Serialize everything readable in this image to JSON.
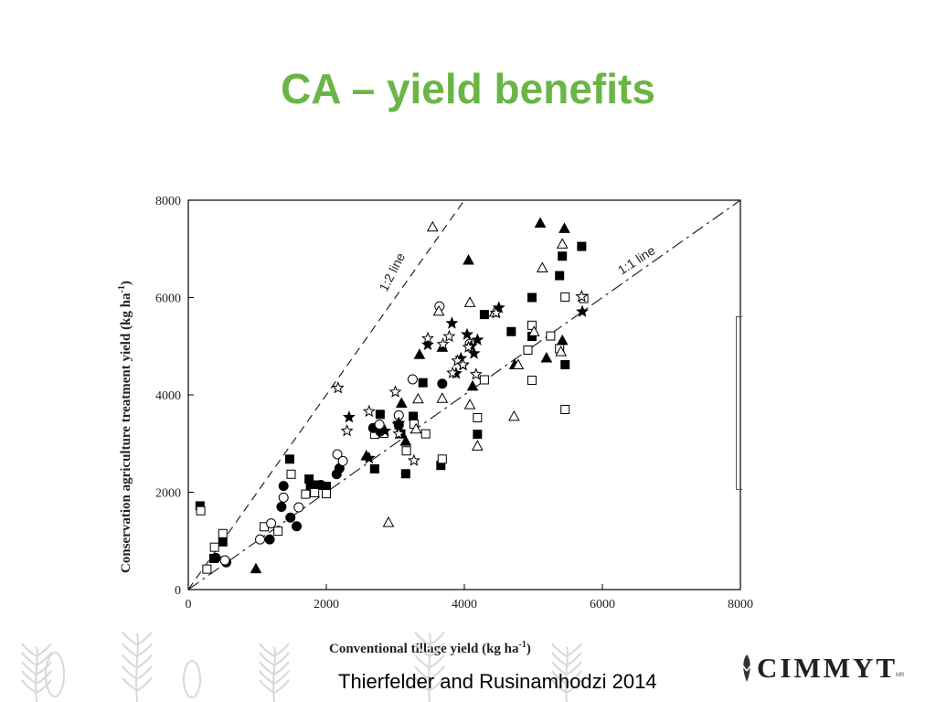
{
  "slide": {
    "title": "CA – yield benefits",
    "caption": "Thierfelder and Rusinamhodzi 2014",
    "logo": "CIMMYT",
    "logo_mark": "MR"
  },
  "colors": {
    "title": "#6ab545",
    "marker": "#000000",
    "footer_art": "#d8d8d8"
  },
  "chart_data": {
    "type": "scatter",
    "xlabel": "Conventional tillage yield (kg ha",
    "xlabel_sup": "-1",
    "xlabel_tail": ")",
    "ylabel": "Conservation agriculture treatment yield (kg ha",
    "ylabel_sup": "-1",
    "ylabel_tail": ")",
    "xlim": [
      0,
      8000
    ],
    "ylim": [
      0,
      8000
    ],
    "xticks": [
      0,
      2000,
      4000,
      6000,
      8000
    ],
    "yticks": [
      0,
      2000,
      4000,
      6000,
      8000
    ],
    "xtick_labels": [
      "0",
      "2000",
      "4000",
      "6000",
      "8000"
    ],
    "ytick_labels": [
      "0",
      "2000",
      "4000",
      "6000",
      "8000"
    ],
    "grid": false,
    "reference_lines": [
      {
        "label": "1:2 line",
        "slope": 2
      },
      {
        "label": "1:1 line",
        "slope": 1
      }
    ],
    "series": [
      {
        "marker": "filled-square",
        "points": [
          [
            170,
            1720
          ],
          [
            370,
            640
          ],
          [
            500,
            980
          ],
          [
            1470,
            2680
          ],
          [
            1750,
            2270
          ],
          [
            1820,
            2150
          ],
          [
            2000,
            2120
          ],
          [
            2700,
            2480
          ],
          [
            2780,
            3600
          ],
          [
            3080,
            3200
          ],
          [
            3150,
            2380
          ],
          [
            3260,
            3560
          ],
          [
            3400,
            4250
          ],
          [
            3660,
            2550
          ],
          [
            4190,
            3190
          ],
          [
            4290,
            5650
          ],
          [
            4680,
            5300
          ],
          [
            4980,
            6000
          ],
          [
            4980,
            5200
          ],
          [
            5380,
            6450
          ],
          [
            5420,
            6850
          ],
          [
            5460,
            4620
          ],
          [
            5700,
            7050
          ],
          [
            1770,
            2100
          ]
        ]
      },
      {
        "marker": "open-square",
        "points": [
          [
            180,
            1620
          ],
          [
            270,
            420
          ],
          [
            380,
            870
          ],
          [
            500,
            1150
          ],
          [
            1100,
            1290
          ],
          [
            1300,
            1200
          ],
          [
            1490,
            2370
          ],
          [
            1700,
            1960
          ],
          [
            1830,
            1990
          ],
          [
            2000,
            1970
          ],
          [
            2700,
            3190
          ],
          [
            2830,
            3210
          ],
          [
            3160,
            2850
          ],
          [
            3270,
            3400
          ],
          [
            3440,
            3200
          ],
          [
            3680,
            2680
          ],
          [
            4190,
            3530
          ],
          [
            4290,
            4310
          ],
          [
            4980,
            4300
          ],
          [
            4980,
            5430
          ],
          [
            5250,
            5210
          ],
          [
            5380,
            4950
          ],
          [
            5460,
            6010
          ],
          [
            5460,
            3700
          ],
          [
            5730,
            5980
          ],
          [
            4920,
            4920
          ]
        ]
      },
      {
        "marker": "filled-circle",
        "points": [
          [
            400,
            650
          ],
          [
            550,
            560
          ],
          [
            1180,
            1030
          ],
          [
            1350,
            1700
          ],
          [
            1380,
            2130
          ],
          [
            1480,
            1480
          ],
          [
            1570,
            1300
          ],
          [
            1920,
            2150
          ],
          [
            2190,
            2490
          ],
          [
            2150,
            2370
          ],
          [
            2680,
            3320
          ],
          [
            2780,
            3250
          ],
          [
            3050,
            3380
          ],
          [
            3680,
            4230
          ]
        ]
      },
      {
        "marker": "open-circle",
        "points": [
          [
            530,
            600
          ],
          [
            1040,
            1030
          ],
          [
            1200,
            1360
          ],
          [
            1380,
            1890
          ],
          [
            1600,
            1690
          ],
          [
            2160,
            2780
          ],
          [
            2240,
            2640
          ],
          [
            2770,
            3390
          ],
          [
            3050,
            3580
          ],
          [
            3250,
            4320
          ],
          [
            3640,
            5820
          ],
          [
            4080,
            5050
          ]
        ]
      },
      {
        "marker": "filled-triangle",
        "points": [
          [
            980,
            430
          ],
          [
            2580,
            2750
          ],
          [
            3090,
            3830
          ],
          [
            3150,
            3050
          ],
          [
            3350,
            4830
          ],
          [
            3680,
            4980
          ],
          [
            4060,
            6770
          ],
          [
            4120,
            4180
          ],
          [
            4730,
            4620
          ],
          [
            5100,
            7530
          ],
          [
            5450,
            7420
          ],
          [
            5420,
            5120
          ],
          [
            5190,
            4760
          ]
        ]
      },
      {
        "marker": "open-triangle",
        "points": [
          [
            2900,
            1380
          ],
          [
            3330,
            3920
          ],
          [
            3630,
            5720
          ],
          [
            3680,
            3930
          ],
          [
            4080,
            5900
          ],
          [
            4080,
            3800
          ],
          [
            4190,
            2950
          ],
          [
            4440,
            5700
          ],
          [
            4720,
            3560
          ],
          [
            4780,
            4620
          ],
          [
            5010,
            5300
          ],
          [
            5130,
            6610
          ],
          [
            5420,
            7100
          ],
          [
            5400,
            4890
          ],
          [
            3300,
            3300
          ],
          [
            3540,
            7450
          ]
        ]
      },
      {
        "marker": "filled-star",
        "points": [
          [
            2330,
            3540
          ],
          [
            2620,
            2700
          ],
          [
            2850,
            3260
          ],
          [
            3040,
            3390
          ],
          [
            3050,
            3420
          ],
          [
            3470,
            5030
          ],
          [
            3820,
            5470
          ],
          [
            3880,
            4440
          ],
          [
            3950,
            4750
          ],
          [
            3980,
            4610
          ],
          [
            4040,
            5240
          ],
          [
            4100,
            5000
          ],
          [
            4140,
            4850
          ],
          [
            4190,
            5130
          ],
          [
            4500,
            5790
          ],
          [
            5710,
            5710
          ]
        ]
      },
      {
        "marker": "open-star",
        "points": [
          [
            2170,
            4140
          ],
          [
            2300,
            3260
          ],
          [
            2620,
            3660
          ],
          [
            3000,
            4060
          ],
          [
            3050,
            3200
          ],
          [
            3270,
            2650
          ],
          [
            3470,
            5160
          ],
          [
            3690,
            5040
          ],
          [
            3780,
            5200
          ],
          [
            3830,
            4450
          ],
          [
            3900,
            4700
          ],
          [
            3980,
            4620
          ],
          [
            4060,
            4980
          ],
          [
            4170,
            4420
          ],
          [
            4460,
            5680
          ],
          [
            5700,
            6020
          ]
        ]
      }
    ]
  }
}
